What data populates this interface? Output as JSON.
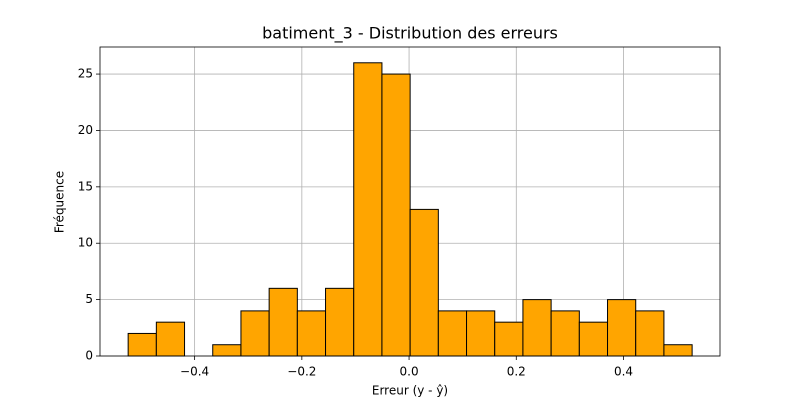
{
  "chart_data": {
    "type": "histogram",
    "title": "batiment_3 - Distribution des erreurs",
    "xlabel": "Erreur (y - ŷ)",
    "ylabel": "Fréquence",
    "bins": [
      -0.524,
      -0.4714,
      -0.4188,
      -0.3662,
      -0.3136,
      -0.261,
      -0.2084,
      -0.1558,
      -0.1032,
      -0.0506,
      0.002,
      0.0546,
      0.1072,
      0.1598,
      0.2124,
      0.265,
      0.3176,
      0.3702,
      0.4228,
      0.4754,
      0.528
    ],
    "values": [
      2,
      3,
      0,
      1,
      4,
      6,
      4,
      6,
      26,
      25,
      13,
      4,
      4,
      3,
      5,
      4,
      3,
      5,
      4,
      1
    ],
    "color": "#ffa500",
    "edgecolor": "#000000",
    "xlim": [
      -0.5765,
      0.58
    ],
    "ylim": [
      0,
      27.4
    ],
    "xticks": [
      {
        "value": -0.4,
        "label": "−0.4"
      },
      {
        "value": -0.2,
        "label": "−0.2"
      },
      {
        "value": 0,
        "label": "0.0"
      },
      {
        "value": 0.2,
        "label": "0.2"
      },
      {
        "value": 0.4,
        "label": "0.4"
      }
    ],
    "yticks": [
      0,
      5,
      10,
      15,
      20,
      25
    ],
    "grid": true
  }
}
